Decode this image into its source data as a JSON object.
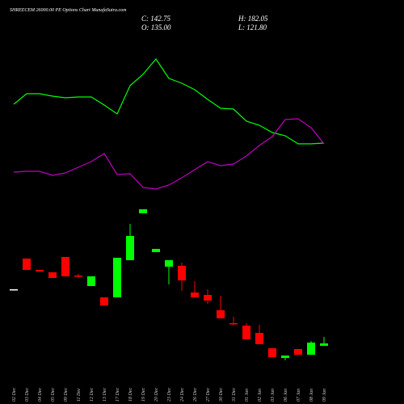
{
  "chart_data": {
    "type": "candlestick",
    "title": "SHREECEM 26000.00 PE Options Chart MunafaSutra.com",
    "header": {
      "close": "C: 142.75",
      "open": "O: 135.00",
      "high": "H: 182.05",
      "low": "L: 121.80"
    },
    "categories": [
      "02 Dec",
      "03 Dec",
      "04 Dec",
      "05 Dec",
      "09 Dec",
      "11 Dec",
      "12 Dec",
      "13 Dec",
      "17 Dec",
      "18 Dec",
      "19 Dec",
      "20 Dec",
      "23 Dec",
      "24 Dec",
      "26 Dec",
      "27 Dec",
      "30 Dec",
      "31 Dec",
      "01 Jan",
      "02 Jan",
      "03 Jan",
      "06 Jan",
      "07 Jan",
      "08 Jan",
      "09 Jan"
    ],
    "open": [
      122,
      160,
      146,
      143,
      162,
      139,
      126,
      112,
      112,
      158,
      216,
      168,
      150,
      151,
      118,
      115,
      96,
      80,
      77,
      68,
      49,
      37,
      48,
      41,
      52
    ],
    "high": [
      122,
      160,
      146,
      143,
      162,
      141,
      138,
      112,
      161,
      203,
      221,
      172,
      158,
      155,
      132,
      122,
      114,
      88,
      80,
      78,
      49,
      40,
      48,
      58,
      63
    ],
    "low": [
      122,
      146,
      144,
      136,
      138,
      137,
      126,
      102,
      112,
      158,
      216,
      168,
      128,
      120,
      112,
      104,
      86,
      78,
      60,
      54,
      38,
      34,
      41,
      41,
      52
    ],
    "close": [
      122,
      146,
      144,
      136,
      138,
      138,
      138,
      102,
      161,
      188,
      221,
      172,
      158,
      133,
      112,
      108,
      86,
      79,
      60,
      54,
      38,
      40,
      41,
      56,
      55
    ],
    "up_color": "#00ff00",
    "down_color": "#ff0000",
    "flat_color": "#ffffff",
    "lines": [
      {
        "color": "#00ff00",
        "values": [
          351,
          364,
          364,
          361,
          359,
          360,
          360,
          350,
          339,
          374,
          388,
          407,
          383,
          377,
          369,
          357,
          346,
          345,
          330,
          325,
          316,
          312,
          302,
          302,
          303
        ]
      },
      {
        "color": "#c000c0",
        "values": [
          267,
          268,
          268,
          263,
          266,
          273,
          280,
          290,
          264,
          265,
          248,
          246,
          251,
          260,
          270,
          280,
          275,
          277,
          287,
          300,
          311,
          332,
          333,
          322,
          302
        ]
      }
    ],
    "ylim": [
      0,
      480
    ]
  }
}
